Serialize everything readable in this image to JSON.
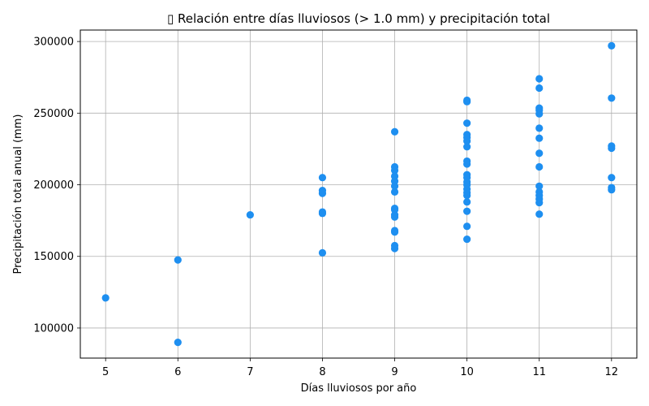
{
  "chart_data": {
    "type": "scatter",
    "title": "▯ Relación entre días lluviosos (> 1.0 mm) y precipitación total",
    "xlabel": "Días lluviosos por año",
    "ylabel": "Precipitación total anual (mm)",
    "xlim": [
      4.65,
      12.35
    ],
    "ylim": [
      79000,
      308000
    ],
    "xticks": [
      5,
      6,
      7,
      8,
      9,
      10,
      11,
      12
    ],
    "yticks": [
      100000,
      150000,
      200000,
      250000,
      300000
    ],
    "grid": true,
    "marker_color": "#1e8ff0",
    "points": [
      [
        5,
        121000
      ],
      [
        6,
        90000
      ],
      [
        6,
        147500
      ],
      [
        7,
        179000
      ],
      [
        8,
        152500
      ],
      [
        8,
        180000
      ],
      [
        8,
        181000
      ],
      [
        8,
        194000
      ],
      [
        8,
        196000
      ],
      [
        8,
        205000
      ],
      [
        9,
        155500
      ],
      [
        9,
        157500
      ],
      [
        9,
        167000
      ],
      [
        9,
        168000
      ],
      [
        9,
        177500
      ],
      [
        9,
        179000
      ],
      [
        9,
        182500
      ],
      [
        9,
        183500
      ],
      [
        9,
        195000
      ],
      [
        9,
        199000
      ],
      [
        9,
        202500
      ],
      [
        9,
        206000
      ],
      [
        9,
        210000
      ],
      [
        9,
        212500
      ],
      [
        9,
        237000
      ],
      [
        10,
        162000
      ],
      [
        10,
        171000
      ],
      [
        10,
        181500
      ],
      [
        10,
        188000
      ],
      [
        10,
        192500
      ],
      [
        10,
        194500
      ],
      [
        10,
        197000
      ],
      [
        10,
        200000
      ],
      [
        10,
        202000
      ],
      [
        10,
        205000
      ],
      [
        10,
        207000
      ],
      [
        10,
        214500
      ],
      [
        10,
        216500
      ],
      [
        10,
        226500
      ],
      [
        10,
        230500
      ],
      [
        10,
        233000
      ],
      [
        10,
        235000
      ],
      [
        10,
        243000
      ],
      [
        10,
        258000
      ],
      [
        10,
        259000
      ],
      [
        11,
        179500
      ],
      [
        11,
        187500
      ],
      [
        11,
        190000
      ],
      [
        11,
        192500
      ],
      [
        11,
        195000
      ],
      [
        11,
        199000
      ],
      [
        11,
        212500
      ],
      [
        11,
        222000
      ],
      [
        11,
        232500
      ],
      [
        11,
        239500
      ],
      [
        11,
        249500
      ],
      [
        11,
        252000
      ],
      [
        11,
        253500
      ],
      [
        11,
        267500
      ],
      [
        11,
        274000
      ],
      [
        12,
        196500
      ],
      [
        12,
        198000
      ],
      [
        12,
        205000
      ],
      [
        12,
        225500
      ],
      [
        12,
        227000
      ],
      [
        12,
        260500
      ],
      [
        12,
        297000
      ]
    ]
  }
}
